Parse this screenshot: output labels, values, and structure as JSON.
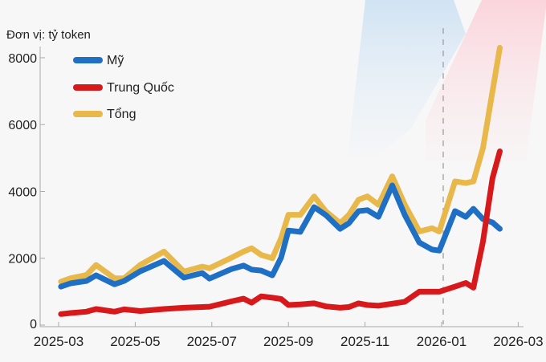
{
  "chart_data": {
    "type": "line",
    "title": "",
    "unit_label": "Đơn vị: tỷ token",
    "xlabel": "",
    "ylabel": "Đơn vị: tỷ token",
    "ylim": [
      0,
      8400
    ],
    "y_ticks": [
      0,
      2000,
      4000,
      6000,
      8000
    ],
    "x_ticks": [
      "2025-03",
      "2025-05",
      "2025-07",
      "2025-09",
      "2025-11",
      "2026-01",
      "2026-03"
    ],
    "x_tick_months": [
      0,
      2,
      4,
      6,
      8,
      10,
      12
    ],
    "grid": false,
    "legend_position": "upper left",
    "reference_line": {
      "x_month": 10.0,
      "label": "2026-01",
      "style": "dashed"
    },
    "x_months": [
      0.06,
      0.31,
      0.73,
      0.98,
      1.46,
      1.71,
      2.13,
      2.75,
      3.27,
      3.75,
      3.94,
      4.52,
      4.83,
      5.04,
      5.29,
      5.58,
      5.81,
      6.0,
      6.31,
      6.67,
      6.98,
      7.35,
      7.58,
      7.83,
      8.06,
      8.35,
      8.71,
      9.04,
      9.42,
      9.75,
      9.94,
      10.35,
      10.63,
      10.83,
      11.08,
      11.33,
      11.52
    ],
    "series": [
      {
        "name": "Mỹ",
        "color": "#1f6fc4",
        "values": [
          1150,
          1250,
          1320,
          1490,
          1220,
          1320,
          1610,
          1920,
          1420,
          1560,
          1390,
          1680,
          1780,
          1660,
          1630,
          1490,
          2020,
          2830,
          2790,
          3530,
          3290,
          2880,
          3050,
          3410,
          3440,
          3240,
          4180,
          3290,
          2470,
          2260,
          2230,
          3410,
          3240,
          3480,
          3170,
          3070,
          2880
        ]
      },
      {
        "name": "Trung Quốc",
        "color": "#d7191c",
        "values": [
          330,
          360,
          400,
          480,
          400,
          470,
          420,
          480,
          520,
          540,
          550,
          710,
          790,
          670,
          860,
          820,
          780,
          600,
          620,
          650,
          560,
          520,
          540,
          650,
          600,
          580,
          640,
          700,
          1000,
          1000,
          1000,
          1150,
          1260,
          1120,
          2500,
          4400,
          5200
        ]
      },
      {
        "name": "Tổng",
        "color": "#e8b84a",
        "values": [
          1300,
          1400,
          1500,
          1800,
          1400,
          1400,
          1800,
          2200,
          1600,
          1750,
          1700,
          2020,
          2200,
          2300,
          2100,
          2000,
          2600,
          3300,
          3300,
          3850,
          3400,
          3050,
          3300,
          3750,
          3850,
          3600,
          4450,
          3600,
          2800,
          2900,
          2800,
          4300,
          4250,
          4300,
          5300,
          7000,
          8300
        ]
      }
    ],
    "legend": [
      {
        "label": "Mỹ",
        "color": "#1f6fc4"
      },
      {
        "label": "Trung Quốc",
        "color": "#d7191c"
      },
      {
        "label": "Tổng",
        "color": "#e8b84a"
      }
    ]
  }
}
